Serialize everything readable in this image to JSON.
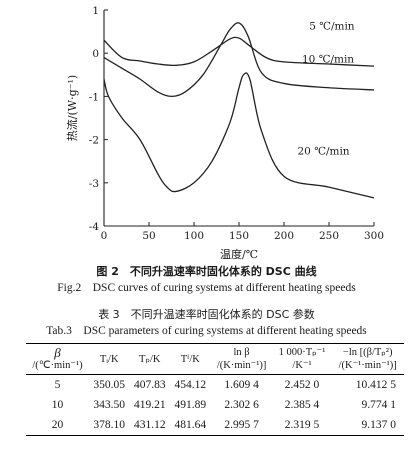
{
  "chart_data": {
    "type": "line",
    "title": "",
    "xlabel": "温度/℃",
    "ylabel": "热流/(W·g⁻¹)",
    "xlim": [
      0,
      300
    ],
    "ylim": [
      -4,
      1
    ],
    "xticks": [
      "0",
      "50",
      "100",
      "150",
      "200",
      "250",
      "300"
    ],
    "yticks": [
      "1",
      "0",
      "-1",
      "-2",
      "-3",
      "-4"
    ],
    "series": [
      {
        "name": "5 ℃/min",
        "x": [
          0,
          20,
          40,
          60,
          80,
          100,
          120,
          140,
          150,
          160,
          180,
          200,
          250,
          300
        ],
        "y": [
          0.3,
          -0.1,
          -0.18,
          -0.25,
          -0.28,
          -0.2,
          0.05,
          0.33,
          0.35,
          0.2,
          -0.1,
          -0.2,
          -0.25,
          -0.3
        ]
      },
      {
        "name": "10 ℃/min",
        "x": [
          0,
          20,
          40,
          60,
          75,
          90,
          110,
          130,
          140,
          150,
          160,
          175,
          200,
          250,
          300
        ],
        "y": [
          -0.1,
          -0.35,
          -0.6,
          -0.9,
          -1.0,
          -0.9,
          -0.5,
          0.2,
          0.55,
          0.7,
          0.4,
          -0.45,
          -0.7,
          -0.8,
          -0.85
        ]
      },
      {
        "name": "20 ℃/min",
        "x": [
          0,
          5,
          20,
          40,
          60,
          70,
          80,
          100,
          120,
          140,
          150,
          155,
          162,
          175,
          200,
          250,
          300
        ],
        "y": [
          -0.6,
          -1.0,
          -1.5,
          -2.0,
          -2.8,
          -3.1,
          -3.2,
          -3.0,
          -2.5,
          -1.6,
          -0.8,
          -0.5,
          -0.6,
          -1.8,
          -2.85,
          -3.1,
          -3.35
        ]
      }
    ]
  },
  "figure_caption_cn": "图 2　不同升温速率时固化体系的 DSC 曲线",
  "figure_caption_en": "Fig.2　DSC curves of curing systems at different heating speeds",
  "table_title_cn": "表 3　不同升温速率时固化体系的 DSC 参数",
  "table_title_en": "Tab.3　DSC parameters of curing systems at different heating speeds",
  "table": {
    "headers": {
      "beta_symbol": "β",
      "beta_unit": "/(℃·min⁻¹)",
      "ti": "Tᵢ/K",
      "tp": "Tₚ/K",
      "tf": "Tᶠ/K",
      "lnbeta_1": "ln β",
      "lnbeta_2": "/(K·min⁻¹)]",
      "inv_tp_1": "1 000·Tₚ⁻¹",
      "inv_tp_2": "/K⁻¹",
      "kiss_1": "−ln [(β/Tₚ²)",
      "kiss_2": "/(K⁻¹·min⁻¹)]"
    },
    "rows": [
      {
        "beta": "5",
        "ti": "350.05",
        "tp": "407.83",
        "tf": "454.12",
        "lnbeta": "1.609 4",
        "inv_tp": "2.452 0",
        "kiss": "10.412 5"
      },
      {
        "beta": "10",
        "ti": "343.50",
        "tp": "419.21",
        "tf": "491.89",
        "lnbeta": "2.302 6",
        "inv_tp": "2.385 4",
        "kiss": "9.774 1"
      },
      {
        "beta": "20",
        "ti": "378.10",
        "tp": "431.12",
        "tf": "481.64",
        "lnbeta": "2.995 7",
        "inv_tp": "2.319 5",
        "kiss": "9.137 0"
      }
    ]
  }
}
